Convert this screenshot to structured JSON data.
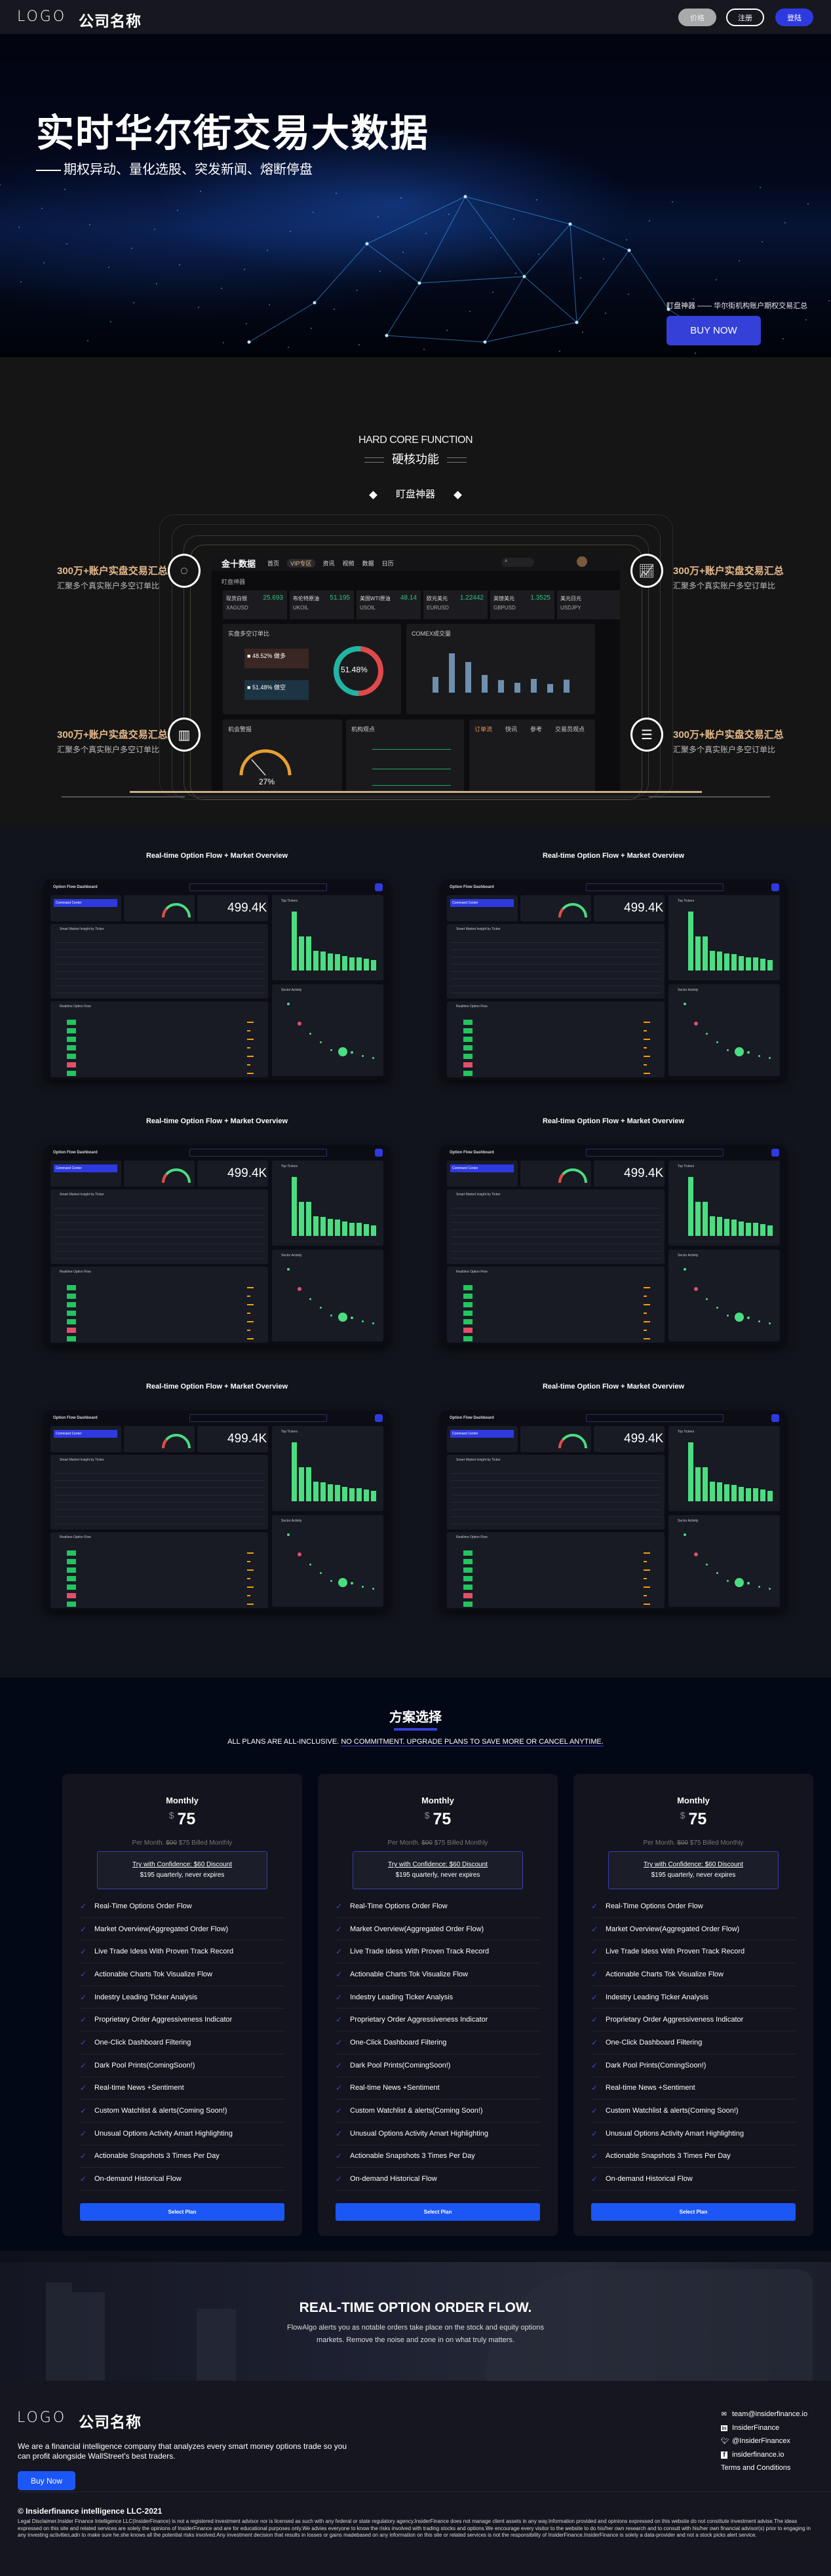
{
  "header": {
    "logo": "LOGO",
    "company": "公司名称",
    "price_btn": "价格",
    "register_btn": "注册",
    "login_btn": "登陆"
  },
  "hero": {
    "title": "实时华尔街交易大数据",
    "subtitle": "期权异动、量化选股、突发新闻、熔断停盘",
    "tagline": "盯盘神器 —— 华尔街机构账户期权交易汇总",
    "buy_label": "BUY NOW"
  },
  "core": {
    "title_en": "HARD CORE FUNCTION",
    "title_cn": "硬核功能",
    "tab": "盯盘神器",
    "features": [
      {
        "title": "300万+账户实盘交易汇总",
        "desc": "汇聚多个真实账户多空订单比",
        "icon": "cycle-icon"
      },
      {
        "title": "300万+账户实盘交易汇总",
        "desc": "汇聚多个真实账户多空订单比",
        "icon": "trend-chart-icon"
      },
      {
        "title": "300万+账户实盘交易汇总",
        "desc": "汇聚多个真实账户多空订单比",
        "icon": "bar-chart-icon"
      },
      {
        "title": "300万+账户实盘交易汇总",
        "desc": "汇聚多个真实账户多空订单比",
        "icon": "database-icon"
      }
    ],
    "mock": {
      "brand": "金十数据",
      "nav": [
        "首页",
        "VIP专区",
        "资讯",
        "视频",
        "数据",
        "日历"
      ],
      "page": "盯盘神器",
      "tickers": [
        {
          "name": "现货白银",
          "code": "XAGUSD",
          "value": "25.693"
        },
        {
          "name": "布伦特原油",
          "code": "UKOIL",
          "value": "51.195"
        },
        {
          "name": "美国WTI原油",
          "code": "USOIL",
          "value": "48.14"
        },
        {
          "name": "欧元美元",
          "code": "EURUSD",
          "value": "1.22442"
        },
        {
          "name": "英镑美元",
          "code": "GBPUSD",
          "value": "1.3525"
        },
        {
          "name": "美元日元",
          "code": "USDJPY",
          "value": ""
        }
      ],
      "ratio_title": "实盘多空订单比",
      "long_pct": "48.52%",
      "long_label": "做多",
      "short_pct": "51.48%",
      "short_label": "做空",
      "short_fraction": 0.5148,
      "comex_title": "COMEX成交量",
      "comex_bars": [
        40,
        100,
        78,
        45,
        32,
        25,
        35,
        22,
        33
      ],
      "alert_title": "机会警报",
      "gauge_value": "27%",
      "gauge_fraction": 0.27,
      "inst_title": "机构观点",
      "order_tabs": [
        "订单流",
        "快讯",
        "参考",
        "交易员观点"
      ]
    }
  },
  "dashboards": {
    "title": "Real-time Option Flow + Market Overview",
    "app_title": "Option Flow Dashboard",
    "command": "Command Center",
    "big_number": "499.4K",
    "top_tickers": "Top Tickers",
    "sector": "Sector Activity",
    "insight": "Smart Market Insight by Ticker",
    "flow": "Realtime Option Flow",
    "bars": [
      100,
      58,
      58,
      33,
      32,
      29,
      28,
      24,
      22,
      22,
      20,
      18
    ],
    "count": 6
  },
  "pricing": {
    "title": "方案选择",
    "subtitle_a": "ALL PLANS ARE ALL-INCLUSIVE. ",
    "subtitle_b": "NO COMMITMENT. UPGRADE PLANS TO SAVE MORE OR CANCEL ANYTIME.",
    "plans": [
      {
        "name": "Monthly",
        "currency": "$",
        "price": "75",
        "per_a": "Per Month. ",
        "per_old": "$00",
        "per_b": " $75 Billed Monthly",
        "offer": "Try with Confidence: $60 Discount",
        "offer_sub": "$195 quarterly, never expires",
        "button": "Select Plan"
      },
      {
        "name": "Monthly",
        "currency": "$",
        "price": "75",
        "per_a": "Per Month. ",
        "per_old": "$00",
        "per_b": " $75 Billed Monthly",
        "offer": "Try with Confidence: $60 Discount",
        "offer_sub": "$195 quarterly, never expires",
        "button": "Select Plan"
      },
      {
        "name": "Monthly",
        "currency": "$",
        "price": "75",
        "per_a": "Per Month. ",
        "per_old": "$00",
        "per_b": " $75 Billed Monthly",
        "offer": "Try with Confidence: $60 Discount",
        "offer_sub": "$195 quarterly, never expires",
        "button": "Select Plan"
      }
    ],
    "features": [
      "Real-Time Options Order Flow",
      "Market Overview(Aggregated Order Flow)",
      "Live Trade Idess With Proven Track Record",
      "Actionable Charts Tok Visualize Flow",
      "Indestry Leading Ticker Analysis",
      "Proprietary Order Aggressiveness Indicator",
      "One-Click Dashboard Filtering",
      "Dark Pool Prints(ComingSoon!)",
      "Real-time News +Sentiment",
      "Custom Watchlist & alerts(Coming Soon!)",
      "Unusual Options Activity Amart Highlighting",
      "Actionable Snapshots 3 Times Per Day",
      "On-demand Historical Flow"
    ]
  },
  "cta": {
    "title": "REAL-TIME OPTION ORDER FLOW.",
    "text1": "FlowAlgo alerts you as notable orders take place on the stock and equity options",
    "text2": "markets. Remove the noise and zone in on what truly matters."
  },
  "footer": {
    "logo": "LOGO",
    "company": "公司名称",
    "about": "We are a financial intelligence company that analyzes every smart money options trade so you can profit alongside WallStreet's best traders.",
    "buy": "Buy Now",
    "email": "team@insiderfinance.io",
    "linkedin": "InsiderFinance",
    "twitter": "@InsiderFinancex",
    "facebook": "insiderfinance.io",
    "terms": "Terms and Conditions",
    "copyright": "© Insiderfinance intelligence LLC-2021",
    "disclaimer": "Legal Disclaimer.Insider Finance Intelligence LLC(InsiderFinance) is not a registered investment advisor nor is licensed as such with any federal or state regulatory agency.InsiderFinance does not manage client assets in any way.Information provided and opinions expressed on this website do not constitute investment advise.The ideas expressed on this site and related services are solely the opinions of InsiderFinance and are for educational purposes only.We advies everyone to know the risks involved with trading stocks and options.We encourage every visitor to the website to do his/her own research and to consult with his/her own financial advisor(s) prior to engaging in any investing activities,adn to make sure he.she knows all the potential risks involved.Any investment decision that results in losses or gains madebased on any information on this site or related services is not the responsibility of InsiderFinance.InsiderFinance is solely a data-provider and not a stock picks alert service."
  },
  "colors": {
    "accent": "#3540d8",
    "gold": "#e5b98a",
    "green": "#4ade80",
    "red": "#e04a4a",
    "teal": "#1fb5a5"
  }
}
